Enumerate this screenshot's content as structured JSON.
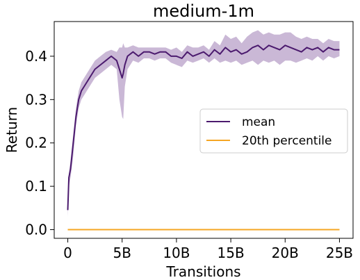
{
  "chart_data": {
    "type": "line",
    "title": "medium-1m",
    "xlabel": "Transitions",
    "ylabel": "Return",
    "xlim": [
      -1.25,
      26.25
    ],
    "ylim": [
      -0.02,
      0.48
    ],
    "x_ticks": [
      {
        "value": 0,
        "label": "0"
      },
      {
        "value": 5,
        "label": "5B"
      },
      {
        "value": 10,
        "label": "10B"
      },
      {
        "value": 15,
        "label": "15B"
      },
      {
        "value": 20,
        "label": "20B"
      },
      {
        "value": 25,
        "label": "25B"
      }
    ],
    "y_ticks": [
      {
        "value": 0.0,
        "label": "0.0"
      },
      {
        "value": 0.1,
        "label": "0.1"
      },
      {
        "value": 0.2,
        "label": "0.2"
      },
      {
        "value": 0.3,
        "label": "0.3"
      },
      {
        "value": 0.4,
        "label": "0.4"
      }
    ],
    "grid": false,
    "legend_position": "center-right",
    "series": [
      {
        "name": "mean",
        "color": "#4b1a6e",
        "band_color": "#c4b0d2",
        "x": [
          0,
          0.1,
          0.25,
          0.5,
          0.75,
          1.0,
          1.25,
          1.5,
          2.0,
          2.5,
          3.0,
          3.5,
          4.0,
          4.5,
          4.75,
          5.0,
          5.1,
          5.25,
          5.5,
          6.0,
          6.5,
          7.0,
          7.5,
          8.0,
          8.5,
          9.0,
          9.5,
          10.0,
          10.5,
          11.0,
          11.5,
          12.0,
          12.5,
          13.0,
          13.5,
          14.0,
          14.5,
          15.0,
          15.5,
          16.0,
          16.5,
          17.0,
          17.5,
          18.0,
          18.5,
          19.0,
          19.5,
          20.0,
          20.5,
          21.0,
          21.5,
          22.0,
          22.5,
          23.0,
          23.5,
          24.0,
          24.5,
          25.0
        ],
        "values": [
          0.045,
          0.12,
          0.14,
          0.2,
          0.26,
          0.3,
          0.32,
          0.33,
          0.35,
          0.37,
          0.38,
          0.39,
          0.4,
          0.39,
          0.37,
          0.35,
          0.36,
          0.38,
          0.4,
          0.41,
          0.4,
          0.41,
          0.41,
          0.405,
          0.41,
          0.41,
          0.4,
          0.4,
          0.395,
          0.41,
          0.4,
          0.405,
          0.41,
          0.4,
          0.415,
          0.405,
          0.42,
          0.41,
          0.415,
          0.405,
          0.41,
          0.42,
          0.425,
          0.415,
          0.425,
          0.42,
          0.415,
          0.425,
          0.42,
          0.415,
          0.41,
          0.42,
          0.415,
          0.42,
          0.41,
          0.42,
          0.415,
          0.415
        ],
        "lower": [
          0.03,
          0.1,
          0.12,
          0.17,
          0.24,
          0.28,
          0.3,
          0.31,
          0.33,
          0.35,
          0.36,
          0.37,
          0.38,
          0.37,
          0.3,
          0.26,
          0.255,
          0.33,
          0.37,
          0.39,
          0.385,
          0.395,
          0.395,
          0.39,
          0.395,
          0.395,
          0.385,
          0.38,
          0.375,
          0.39,
          0.385,
          0.39,
          0.395,
          0.385,
          0.395,
          0.385,
          0.39,
          0.385,
          0.39,
          0.38,
          0.385,
          0.39,
          0.38,
          0.39,
          0.385,
          0.39,
          0.38,
          0.39,
          0.39,
          0.385,
          0.39,
          0.395,
          0.39,
          0.4,
          0.39,
          0.4,
          0.395,
          0.4
        ],
        "upper": [
          0.06,
          0.13,
          0.16,
          0.22,
          0.28,
          0.32,
          0.34,
          0.35,
          0.37,
          0.39,
          0.4,
          0.41,
          0.415,
          0.41,
          0.42,
          0.42,
          0.43,
          0.42,
          0.42,
          0.425,
          0.42,
          0.42,
          0.42,
          0.42,
          0.42,
          0.42,
          0.415,
          0.42,
          0.41,
          0.425,
          0.42,
          0.42,
          0.425,
          0.415,
          0.435,
          0.425,
          0.45,
          0.44,
          0.445,
          0.43,
          0.445,
          0.455,
          0.46,
          0.45,
          0.455,
          0.45,
          0.45,
          0.455,
          0.455,
          0.445,
          0.44,
          0.445,
          0.44,
          0.44,
          0.43,
          0.44,
          0.435,
          0.435
        ]
      },
      {
        "name": "20th percentile",
        "color": "#f5a623",
        "x": [
          0,
          25
        ],
        "values": [
          0.0,
          0.0
        ]
      }
    ]
  }
}
